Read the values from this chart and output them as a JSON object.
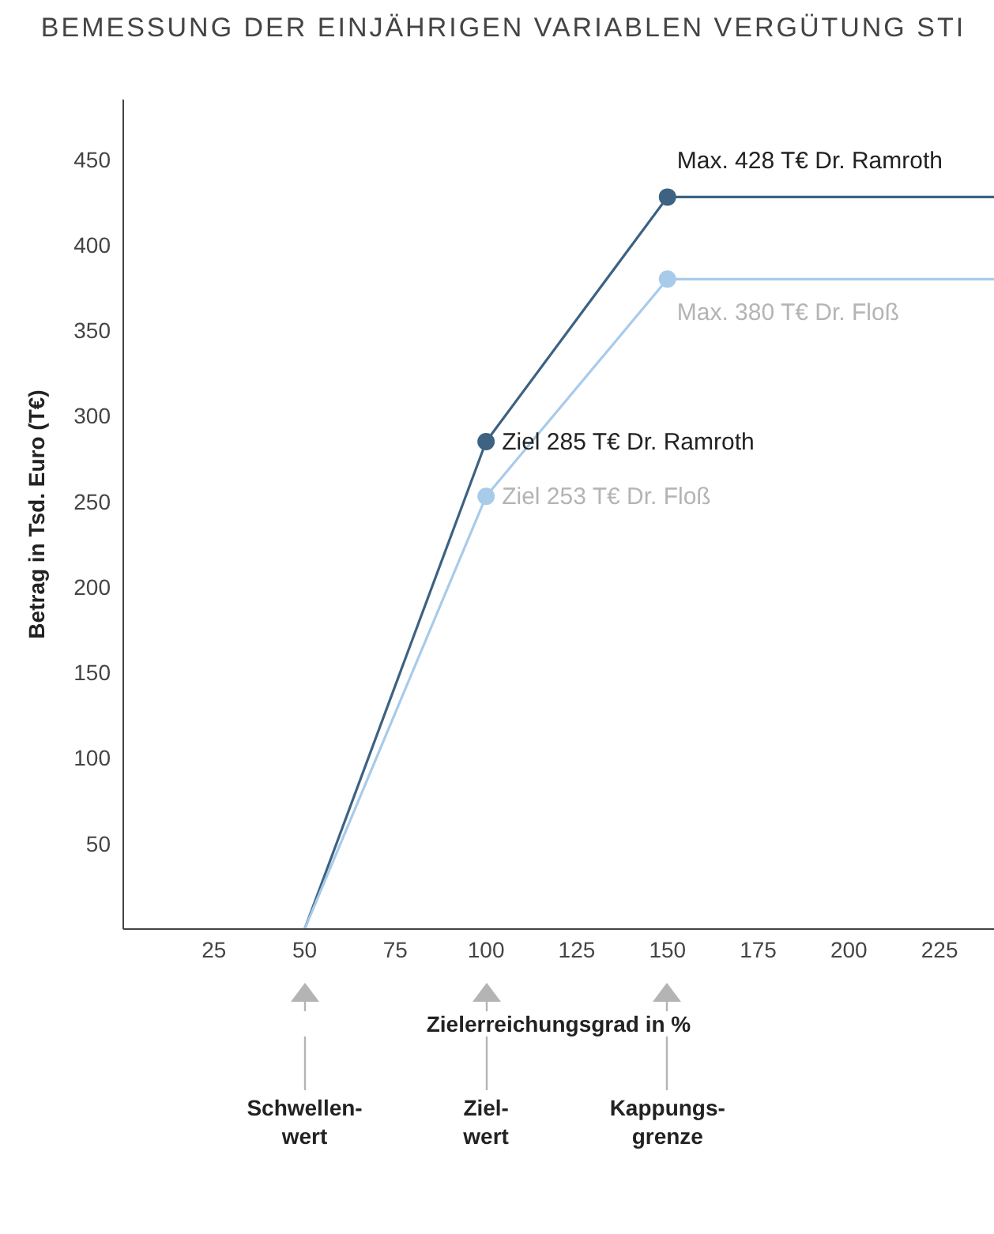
{
  "chart_data": {
    "type": "line",
    "title": "BEMESSUNG DER EINJÄHRIGEN VARIABLEN VERGÜTUNG STI",
    "xlabel": "Zielerreichungsgrad in %",
    "ylabel": "Betrag in Tsd. Euro (T€)",
    "xlim": [
      0,
      240
    ],
    "xticks": [
      25,
      50,
      75,
      100,
      125,
      150,
      175,
      200,
      225
    ],
    "ylim": [
      0,
      485
    ],
    "yticks": [
      50,
      100,
      150,
      200,
      250,
      300,
      350,
      400,
      450
    ],
    "grid": false,
    "legend": false,
    "marker": "circle",
    "line_style": "solid",
    "series": [
      {
        "color": "#3d6282",
        "x": [
          50,
          100,
          150,
          240
        ],
        "values": [
          0,
          285,
          428,
          428
        ],
        "value_labels": [
          null,
          "Ziel 285 T€ Dr. Ramroth",
          "Max. 428 T€ Dr. Ramroth",
          null
        ]
      },
      {
        "color": "#a8cbea",
        "x": [
          50,
          100,
          150,
          240
        ],
        "values": [
          0,
          253,
          380,
          380
        ],
        "value_labels": [
          null,
          "Ziel 253 T€ Dr. Floß",
          "Max. 380 T€ Dr. Floß",
          null
        ]
      }
    ],
    "annotations": [
      "Schwellen-\nwert",
      "Ziel-\nwert",
      "Kappungs-\ngrenze"
    ]
  }
}
